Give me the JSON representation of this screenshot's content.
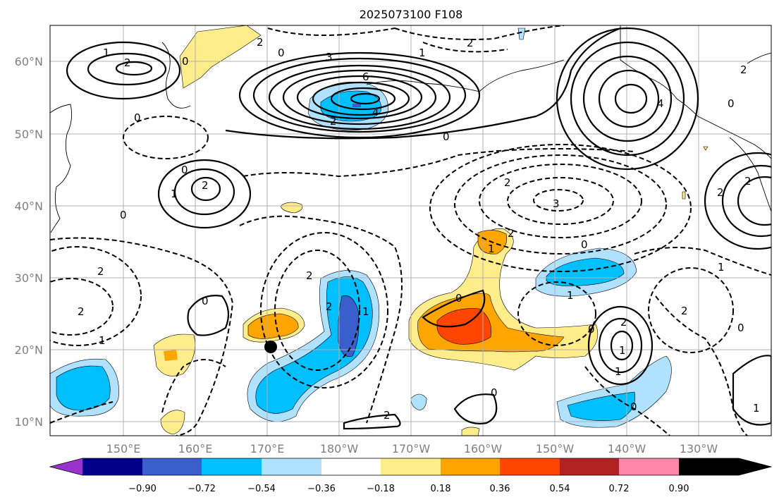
{
  "title": "2025073100 F108",
  "longitude_labels": [
    "150°E",
    "160°E",
    "170°E",
    "180°W",
    "170°W",
    "160°W",
    "150°W",
    "140°W",
    "130°W"
  ],
  "latitude_labels": [
    "60°N",
    "50°N",
    "40°N",
    "30°N",
    "20°N",
    "10°N"
  ],
  "colorbar": {
    "ticks": [
      "−0.90",
      "−0.72",
      "−0.54",
      "−0.36",
      "−0.18",
      "0.18",
      "0.36",
      "0.54",
      "0.72",
      "0.90"
    ],
    "colors": [
      "#9932cc",
      "#00008b",
      "#3a5fcd",
      "#00bfff",
      "#b0e2ff",
      "#ffffff",
      "#ffec8b",
      "#ffa500",
      "#ff4500",
      "#b22222",
      "#ff88aa"
    ]
  },
  "contour_labels": [
    "1",
    "2",
    "0",
    "2",
    "0",
    "2",
    "3",
    "6",
    "4",
    "2",
    "0",
    "2",
    "0",
    "1",
    "2",
    "4",
    "2",
    "0",
    "2",
    "2",
    "3",
    "0",
    "1",
    "2",
    "2",
    "0",
    "2",
    "1",
    "0",
    "2",
    "1",
    "1",
    "0",
    "2",
    "1",
    "2",
    "1",
    "0",
    "0",
    "1",
    "0",
    "0",
    "2",
    "2",
    "1",
    "0",
    "1"
  ],
  "marker": {
    "lat": 20.3,
    "lon_east": 170.5
  }
}
